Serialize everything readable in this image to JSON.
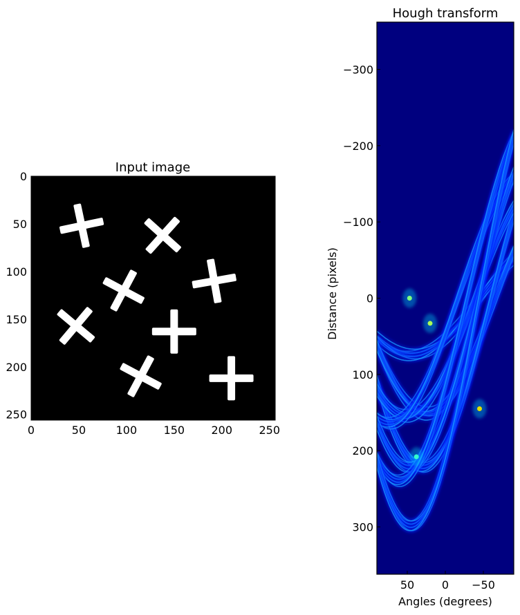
{
  "chart_data": [
    {
      "type": "image",
      "title": "Input image",
      "xlabel": "",
      "ylabel": "",
      "xlim": [
        0,
        256
      ],
      "ylim": [
        256,
        0
      ],
      "xticks": [
        "0",
        "50",
        "100",
        "150",
        "200",
        "250"
      ],
      "yticks": [
        "0",
        "50",
        "100",
        "150",
        "200",
        "250"
      ],
      "background_color": "#000000",
      "shape_color": "#ffffff",
      "crosses": [
        {
          "x": 53,
          "y": 52,
          "rotation": -12
        },
        {
          "x": 138,
          "y": 62,
          "rotation": 42
        },
        {
          "x": 192,
          "y": 110,
          "rotation": -10
        },
        {
          "x": 97,
          "y": 120,
          "rotation": 28
        },
        {
          "x": 47,
          "y": 157,
          "rotation": 40
        },
        {
          "x": 150,
          "y": 163,
          "rotation": 0
        },
        {
          "x": 115,
          "y": 210,
          "rotation": 28
        },
        {
          "x": 210,
          "y": 212,
          "rotation": 0
        }
      ]
    },
    {
      "type": "heatmap",
      "title": "Hough transform",
      "xlabel": "Angles (degrees)",
      "ylabel": "Distance (pixels)",
      "xlim": [
        90,
        -90
      ],
      "ylim": [
        -362,
        362
      ],
      "xticks": [
        50,
        0,
        -50
      ],
      "xtick_labels": [
        "50",
        "0",
        "−50"
      ],
      "yticks": [
        -300,
        -200,
        -100,
        0,
        100,
        200,
        300
      ],
      "ytick_labels": [
        "−300",
        "−200",
        "−100",
        "0",
        "100",
        "200",
        "300"
      ],
      "colormap": "jet",
      "background_color": "#00007f",
      "peaks": [
        {
          "angle": -45,
          "distance": 145,
          "color": "#e0e000"
        },
        {
          "angle": 47,
          "distance": 0,
          "color": "#7fff7f"
        },
        {
          "angle": 20,
          "distance": 33,
          "color": "#aaff55"
        },
        {
          "angle": 38,
          "distance": 208,
          "color": "#33ffcc"
        }
      ]
    }
  ]
}
